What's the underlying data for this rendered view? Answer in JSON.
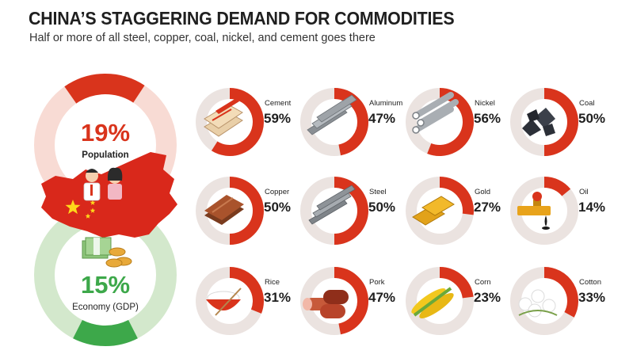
{
  "header": {
    "title": "CHINA’S STAGGERING DEMAND FOR COMMODITIES",
    "subtitle": "Half or more of all steel, copper, coal, nickel, and cement goes there"
  },
  "colors": {
    "accent": "#d9341c",
    "ring_track": "#ebe3e0",
    "population_track": "#f8dbd4",
    "gdp_green": "#3da84a",
    "gdp_track": "#d3e8cc",
    "china_red": "#d9281b",
    "star_yellow": "#ffd81a"
  },
  "chart_data": [
    {
      "type": "pie",
      "name": "china-share",
      "series": [
        {
          "label": "Population",
          "percent_text": "19%",
          "value": 19
        },
        {
          "label": "Economy (GDP)",
          "percent_text": "15%",
          "value": 15
        }
      ]
    },
    {
      "type": "pie",
      "name": "commodities",
      "items": [
        {
          "label": "Cement",
          "percent_text": "59%",
          "value": 59,
          "icon": "cement-bags-icon"
        },
        {
          "label": "Aluminum",
          "percent_text": "47%",
          "value": 47,
          "icon": "aluminum-bars-icon"
        },
        {
          "label": "Nickel",
          "percent_text": "56%",
          "value": 56,
          "icon": "nickel-pipes-icon"
        },
        {
          "label": "Coal",
          "percent_text": "50%",
          "value": 50,
          "icon": "coal-lumps-icon"
        },
        {
          "label": "Copper",
          "percent_text": "50%",
          "value": 50,
          "icon": "copper-plates-icon"
        },
        {
          "label": "Steel",
          "percent_text": "50%",
          "value": 50,
          "icon": "steel-beams-icon"
        },
        {
          "label": "Gold",
          "percent_text": "27%",
          "value": 27,
          "icon": "gold-bars-icon"
        },
        {
          "label": "Oil",
          "percent_text": "14%",
          "value": 14,
          "icon": "oil-pipe-icon"
        },
        {
          "label": "Rice",
          "percent_text": "31%",
          "value": 31,
          "icon": "rice-bowl-icon"
        },
        {
          "label": "Pork",
          "percent_text": "47%",
          "value": 47,
          "icon": "pork-sausage-icon"
        },
        {
          "label": "Corn",
          "percent_text": "23%",
          "value": 23,
          "icon": "corn-cobs-icon"
        },
        {
          "label": "Cotton",
          "percent_text": "33%",
          "value": 33,
          "icon": "cotton-bolls-icon"
        }
      ]
    }
  ]
}
